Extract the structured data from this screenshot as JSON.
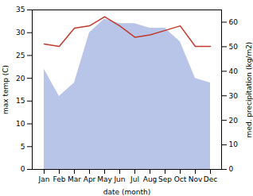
{
  "chart_data": {
    "type": "line",
    "xlabel": "date (month)",
    "ylabel": "max temp (C)",
    "y2label": "med. precipitation (kg/m2)",
    "categories": [
      "Jan",
      "Feb",
      "Mar",
      "Apr",
      "May",
      "Jun",
      "Jul",
      "Aug",
      "Sep",
      "Oct",
      "Nov",
      "Dec"
    ],
    "series": [
      {
        "type": "area",
        "color": "#b8c4e8",
        "values": [
          22,
          16,
          19,
          30,
          33,
          32,
          32,
          31,
          31,
          28,
          20,
          19
        ]
      },
      {
        "type": "line",
        "color": "#c0392b",
        "values": [
          27.5,
          27.0,
          31.0,
          31.5,
          33.5,
          31.5,
          29.0,
          29.5,
          30.5,
          31.5,
          27.0,
          27.0
        ]
      }
    ],
    "ylim": [
      0,
      35
    ],
    "yticks": [
      0,
      5,
      10,
      15,
      20,
      25,
      30,
      35
    ],
    "y2lim": [
      0,
      65
    ],
    "y2ticks": [
      0,
      10,
      20,
      30,
      40,
      50,
      60
    ],
    "grid": false
  }
}
